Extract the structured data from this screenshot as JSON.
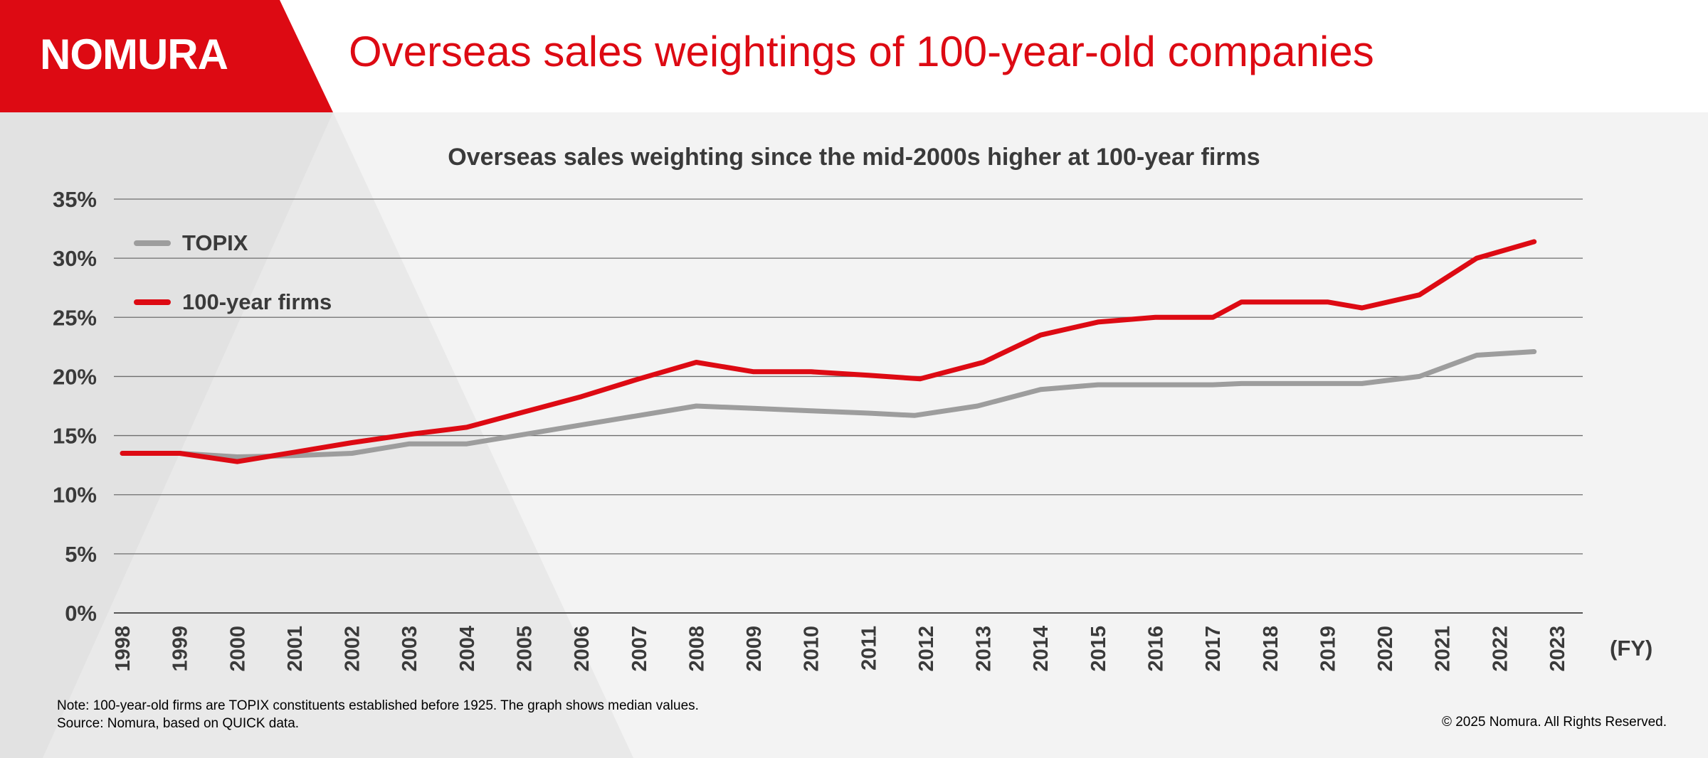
{
  "header": {
    "logo_text": "NOMURA",
    "title": "Overseas sales weightings of 100-year-old companies"
  },
  "footer": {
    "note_line1": "Note: 100-year-old firms are TOPIX constituents established before 1925. The graph shows median values.",
    "note_line2": "Source: Nomura, based on QUICK data.",
    "copyright": "© 2025 Nomura. All Rights Reserved."
  },
  "colors": {
    "brand_red": "#dd0a13",
    "topix_gray": "#9d9d9d",
    "text_dark": "#3a3a3a"
  },
  "chart_data": {
    "type": "line",
    "title": "Overseas sales weighting since the mid-2000s higher at 100-year firms",
    "xlabel": "(FY)",
    "ylabel": "",
    "categories": [
      "1998",
      "1999",
      "2000",
      "2001",
      "2002",
      "2003",
      "2004",
      "2005",
      "2006",
      "2007",
      "2008",
      "2009",
      "2010",
      "2011",
      "2012",
      "2013",
      "2014",
      "2015",
      "2016",
      "2017",
      "2018",
      "2019",
      "2020",
      "2021",
      "2022",
      "2023"
    ],
    "x": [
      1998,
      1999,
      2000,
      2001,
      2002,
      2003,
      2004,
      2005,
      2006,
      2007,
      2008,
      2009,
      2010,
      2011,
      2011.8,
      2013,
      2014,
      2015,
      2016,
      2017,
      2017.5,
      2018,
      2019,
      2019.6,
      2020.6,
      2021.6,
      2022.6
    ],
    "ylim": [
      0,
      35
    ],
    "yticks": [
      0,
      5,
      10,
      15,
      20,
      25,
      30,
      35
    ],
    "ytick_labels": [
      "0%",
      "5%",
      "10%",
      "15%",
      "20%",
      "25%",
      "30%",
      "35%"
    ],
    "grid": true,
    "legend_position": "top-left",
    "series": [
      {
        "name": "TOPIX",
        "color": "#9d9d9d",
        "x": [
          1998,
          1999,
          2000,
          2001,
          2002,
          2003,
          2004,
          2005,
          2006,
          2007,
          2008,
          2009,
          2010,
          2011,
          2011.8,
          2012.9,
          2014,
          2015,
          2016,
          2017,
          2017.5,
          2018,
          2019,
          2019.6,
          2020.6,
          2021.6,
          2022.6
        ],
        "values": [
          13.5,
          13.5,
          13.2,
          13.3,
          13.5,
          14.3,
          14.3,
          15.1,
          15.9,
          16.7,
          17.5,
          17.3,
          17.1,
          16.9,
          16.7,
          17.5,
          18.9,
          19.3,
          19.3,
          19.3,
          19.4,
          19.4,
          19.4,
          19.4,
          20.0,
          21.8,
          22.1
        ]
      },
      {
        "name": "100-year firms",
        "color": "#dd0a13",
        "x": [
          1998,
          1999,
          2000,
          2001,
          2002,
          2003,
          2004,
          2005,
          2006,
          2007,
          2008,
          2009,
          2010,
          2011,
          2011.9,
          2013,
          2014,
          2015,
          2016,
          2017,
          2017.5,
          2018,
          2019,
          2019.6,
          2020.6,
          2021.6,
          2022.6
        ],
        "values": [
          13.5,
          13.5,
          12.8,
          13.6,
          14.4,
          15.1,
          15.7,
          17.0,
          18.3,
          19.8,
          21.2,
          20.4,
          20.4,
          20.1,
          19.8,
          21.2,
          23.5,
          24.6,
          25.0,
          25.0,
          26.3,
          26.3,
          26.3,
          25.8,
          26.9,
          30.0,
          31.4
        ]
      }
    ]
  }
}
